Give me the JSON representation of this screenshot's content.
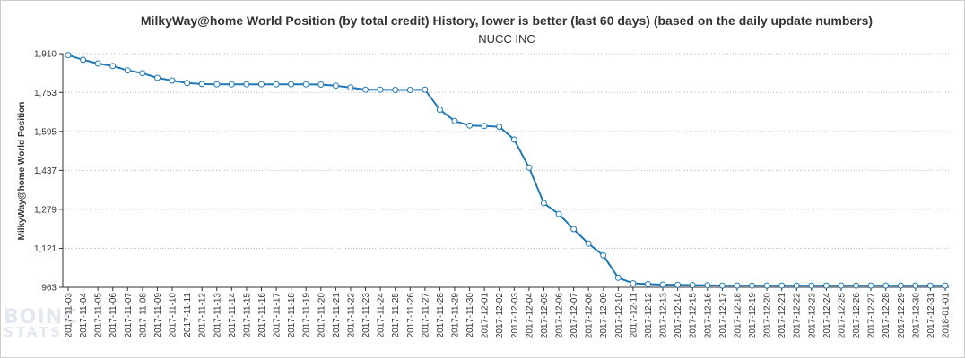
{
  "watermark": {
    "line1": "BOINC",
    "line2": "STATS"
  },
  "chart_data": {
    "type": "line",
    "title": "MilkyWay@home World Position (by total credit) History, lower is better (last 60 days) (based on the daily update numbers)",
    "subtitle": "NUCC INC",
    "ylabel": "MilkyWay@home World Position",
    "xlabel": "",
    "ylim": [
      963,
      1910
    ],
    "yticks": [
      963,
      1121,
      1279,
      1437,
      1595,
      1753,
      1910
    ],
    "ytick_labels": [
      "963",
      "1,121",
      "1,279",
      "1,437",
      "1,595",
      "1,753",
      "1,910"
    ],
    "grid": true,
    "legend": "none",
    "colors": {
      "line": "#1f78b4",
      "marker_fill": "#ffffff"
    },
    "x": [
      "2017-11-03",
      "2017-11-04",
      "2017-11-05",
      "2017-11-06",
      "2017-11-07",
      "2017-11-08",
      "2017-11-09",
      "2017-11-10",
      "2017-11-11",
      "2017-11-12",
      "2017-11-13",
      "2017-11-14",
      "2017-11-15",
      "2017-11-16",
      "2017-11-17",
      "2017-11-18",
      "2017-11-19",
      "2017-11-20",
      "2017-11-21",
      "2017-11-22",
      "2017-11-23",
      "2017-11-24",
      "2017-11-25",
      "2017-11-26",
      "2017-11-27",
      "2017-11-28",
      "2017-11-29",
      "2017-11-30",
      "2017-12-01",
      "2017-12-02",
      "2017-12-03",
      "2017-12-04",
      "2017-12-05",
      "2017-12-06",
      "2017-12-07",
      "2017-12-08",
      "2017-12-09",
      "2017-12-10",
      "2017-12-11",
      "2017-12-12",
      "2017-12-13",
      "2017-12-14",
      "2017-12-15",
      "2017-12-16",
      "2017-12-17",
      "2017-12-18",
      "2017-12-19",
      "2017-12-20",
      "2017-12-21",
      "2017-12-22",
      "2017-12-23",
      "2017-12-24",
      "2017-12-25",
      "2017-12-26",
      "2017-12-27",
      "2017-12-28",
      "2017-12-29",
      "2017-12-30",
      "2017-12-31",
      "2018-01-01"
    ],
    "series": [
      {
        "values": [
          1904,
          1885,
          1870,
          1860,
          1842,
          1831,
          1812,
          1801,
          1791,
          1787,
          1786,
          1786,
          1786,
          1786,
          1786,
          1786,
          1786,
          1785,
          1780,
          1773,
          1764,
          1764,
          1763,
          1763,
          1764,
          1683,
          1637,
          1619,
          1617,
          1614,
          1562,
          1448,
          1304,
          1260,
          1199,
          1140,
          1092,
          1002,
          979,
          976,
          974,
          973,
          972,
          971,
          970,
          970,
          970,
          970,
          970,
          970,
          970,
          970,
          970,
          970,
          970,
          970,
          970,
          970,
          970,
          970
        ]
      }
    ]
  }
}
